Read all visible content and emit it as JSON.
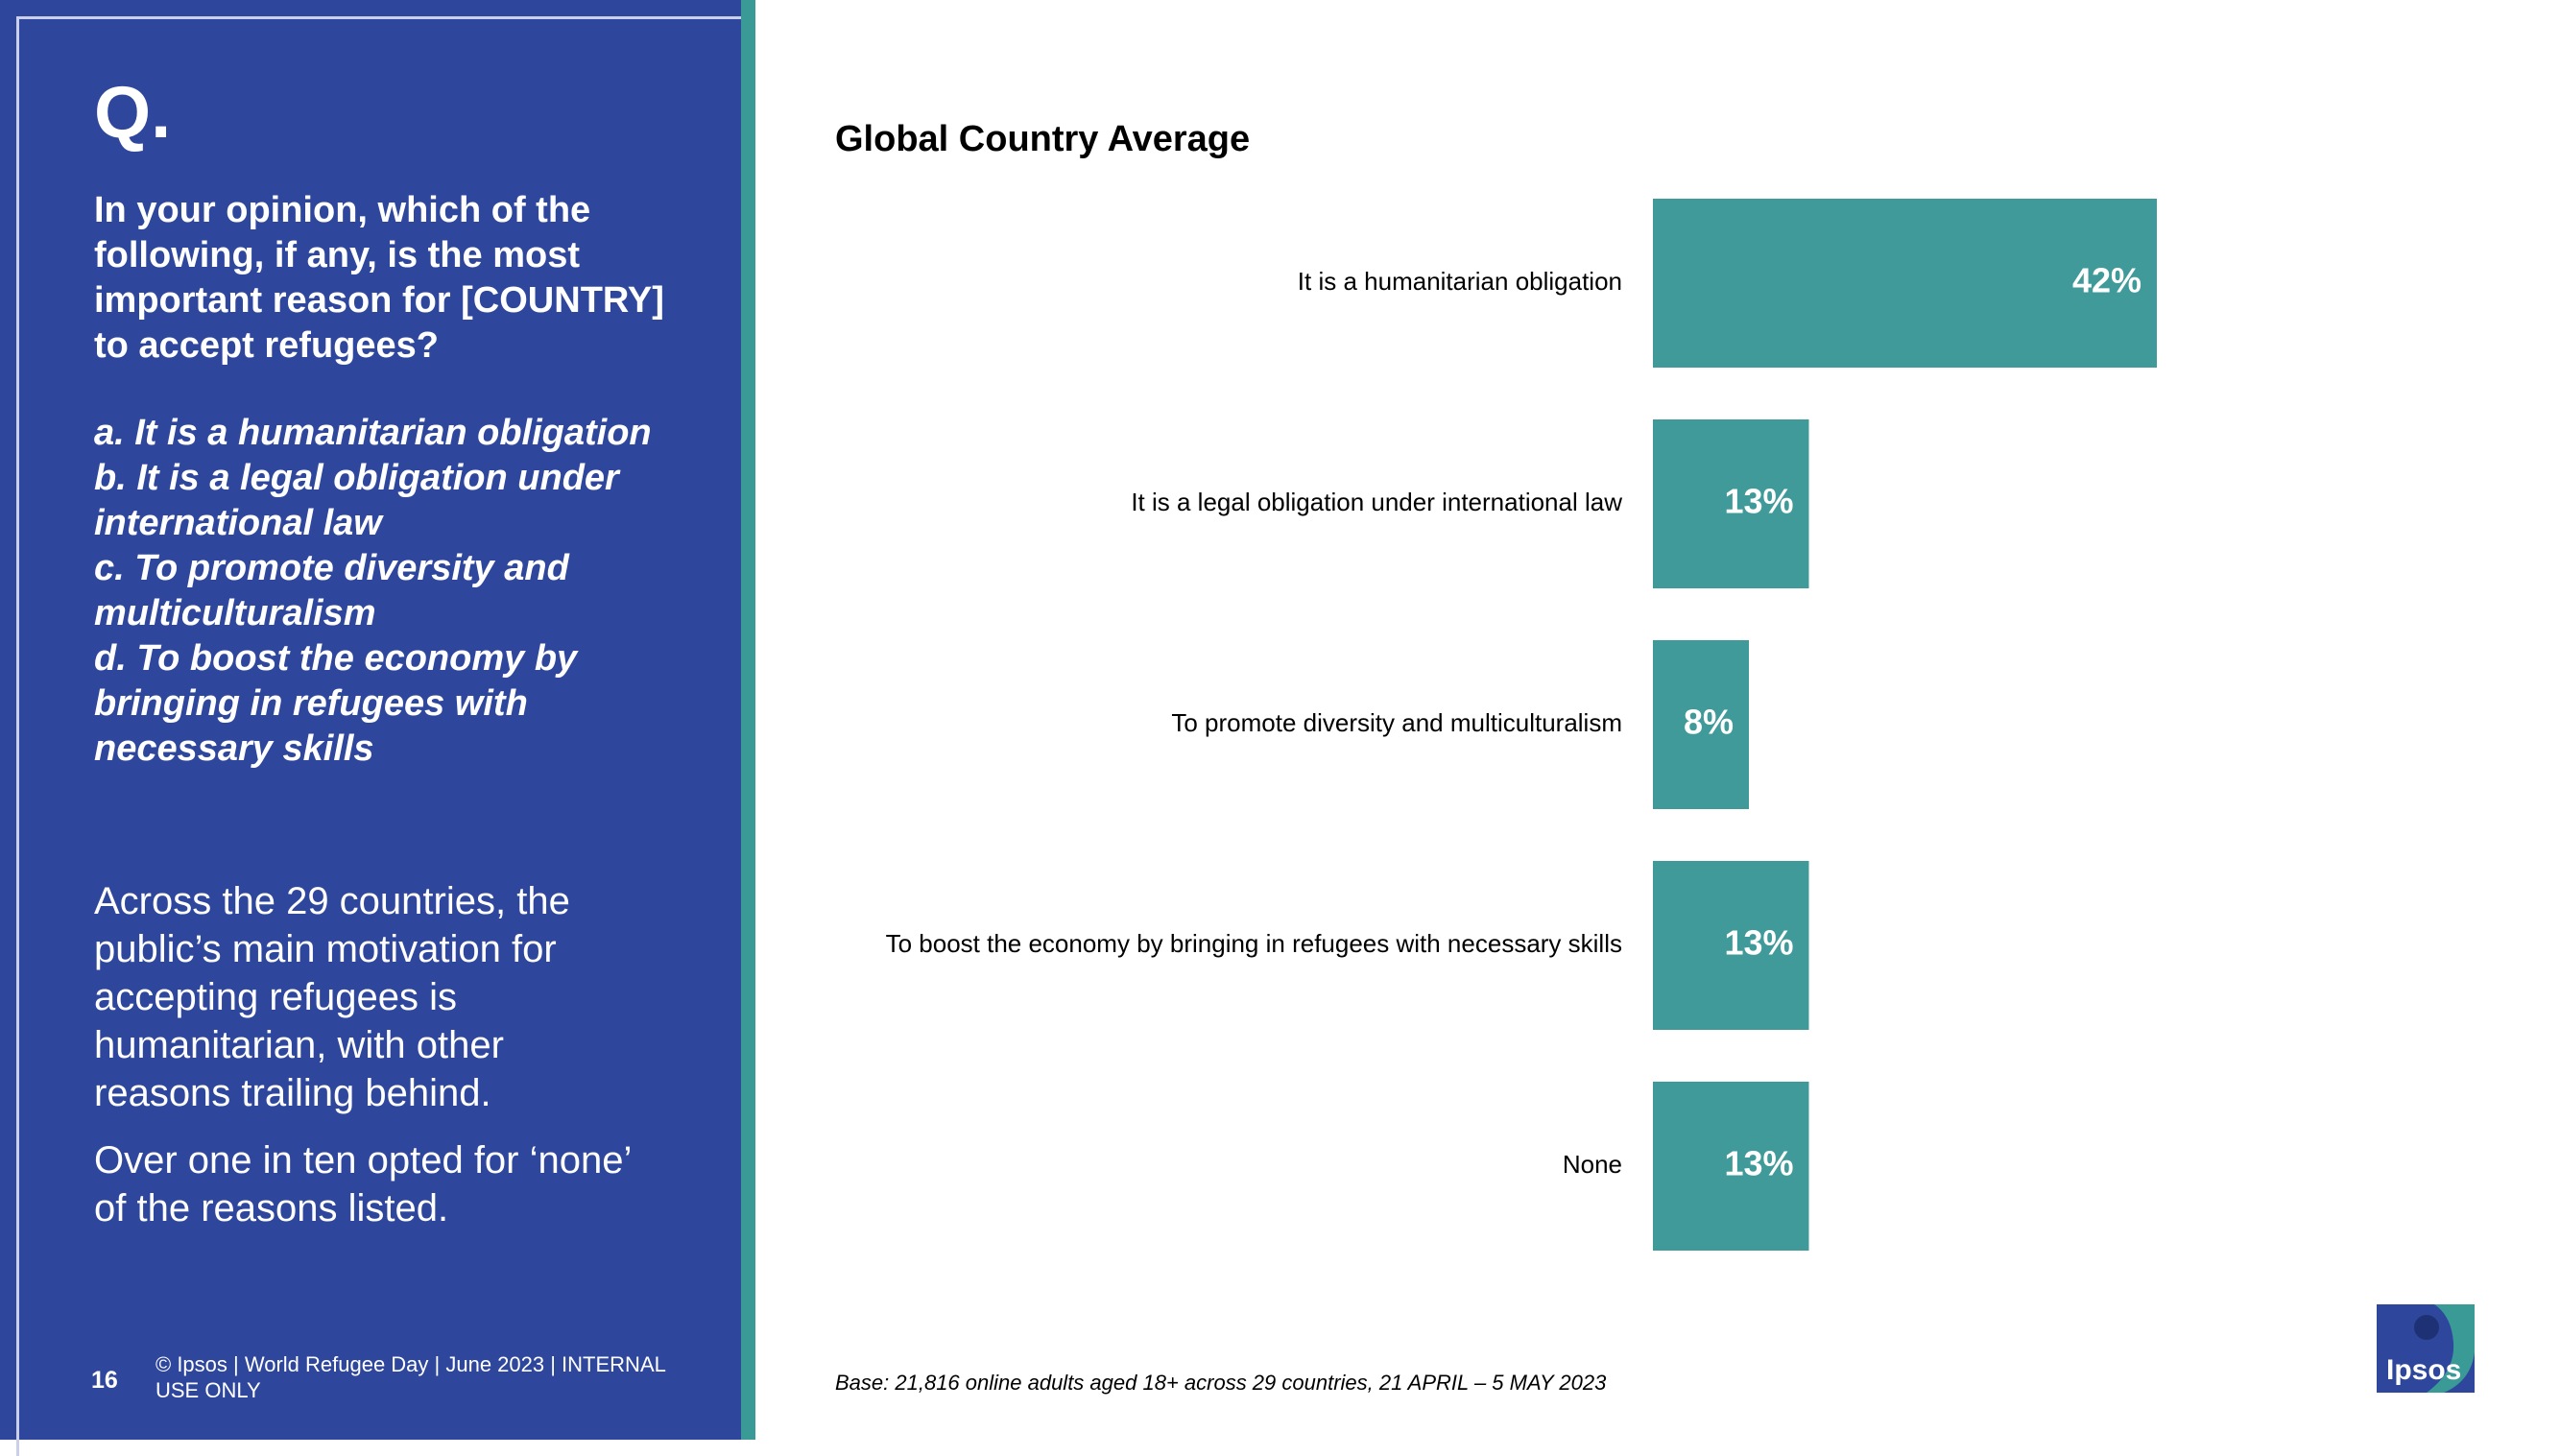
{
  "slide": {
    "q_mark": "Q.",
    "question": "In your opinion, which of the following, if any, is the most important reason for [COUNTRY] to accept refugees?",
    "options": [
      "a. It is a humanitarian obligation",
      "b. It is a legal obligation under international law",
      "c. To promote diversity and multiculturalism",
      "d. To boost the economy by bringing in refugees with necessary skills"
    ],
    "summary": [
      "Across the 29 countries, the public’s main motivation for accepting refugees is humanitarian, with other reasons trailing behind.",
      "Over one in ten opted for ‘none’ of the reasons listed."
    ],
    "page_number": "16",
    "footer": "© Ipsos | World Refugee Day | June 2023 | INTERNAL USE ONLY",
    "base_note": "Base: 21,816 online adults aged 18+ across 29 countries,  21 APRIL – 5 MAY 2023",
    "logo_text": "Ipsos"
  },
  "colors": {
    "panel_blue": "#2e479c",
    "accent_teal": "#3a9b96",
    "bar_teal": "#3f9a99"
  },
  "chart_data": {
    "type": "bar",
    "orientation": "horizontal",
    "title": "Global Country Average",
    "categories": [
      "It is a humanitarian obligation",
      "It is a legal obligation under international law",
      "To promote diversity and multiculturalism",
      "To boost the economy by bringing in refugees with necessary skills",
      "None"
    ],
    "values": [
      42,
      13,
      8,
      13,
      13
    ],
    "data_labels": [
      "42%",
      "13%",
      "8%",
      "13%",
      "13%"
    ],
    "xlim": [
      0,
      100
    ],
    "grid": false,
    "legend": "none"
  }
}
